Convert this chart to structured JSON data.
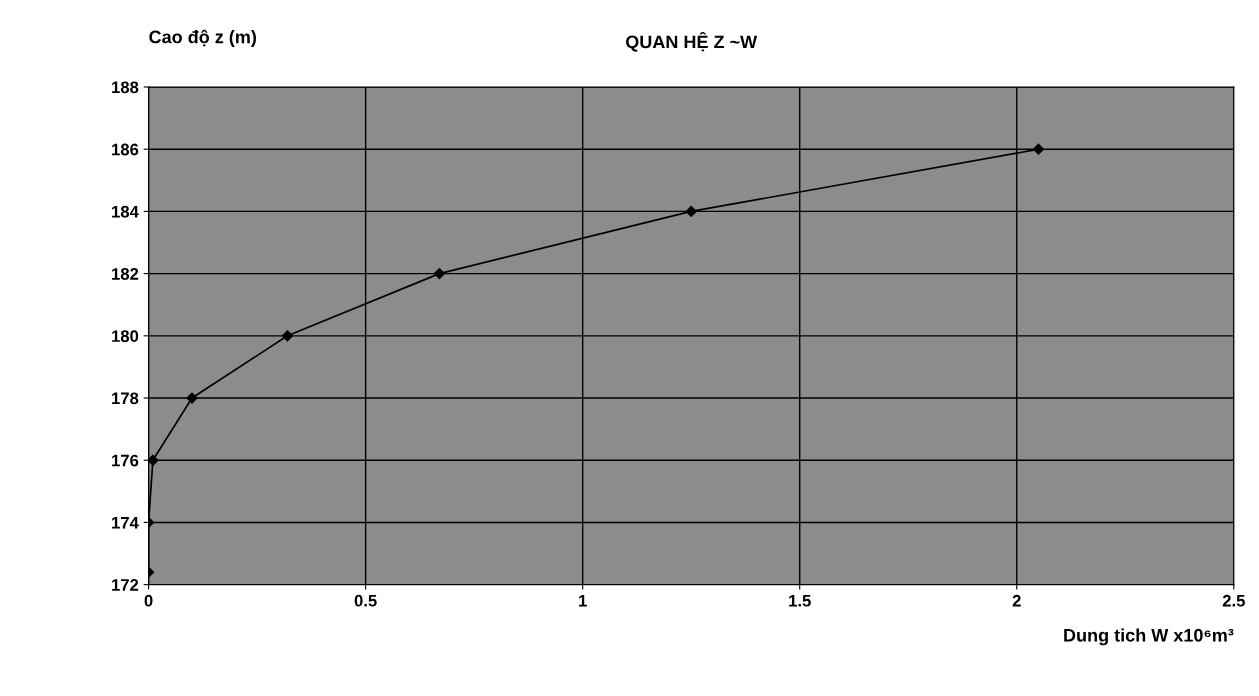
{
  "chart_data": {
    "type": "line",
    "title": "QUAN HỆ Z ~W",
    "xlabel": "Dung tich W x10⁶m³",
    "ylabel": "Cao độ z (m)",
    "series": [
      {
        "color": "#000000",
        "x": [
          0,
          0,
          0.01,
          0.1,
          0.32,
          0.67,
          1.25,
          2.05
        ],
        "values": [
          172.4,
          174,
          176,
          178,
          180,
          182,
          184,
          186
        ]
      }
    ],
    "xlim": [
      0,
      2.5
    ],
    "xticks": [
      0,
      0.5,
      1,
      1.5,
      2,
      2.5
    ],
    "ylim": [
      172,
      188
    ],
    "yticks": [
      172,
      174,
      176,
      178,
      180,
      182,
      184,
      186,
      188
    ],
    "grid": true,
    "marker": "diamond",
    "line_style": "solid",
    "legend": false
  }
}
